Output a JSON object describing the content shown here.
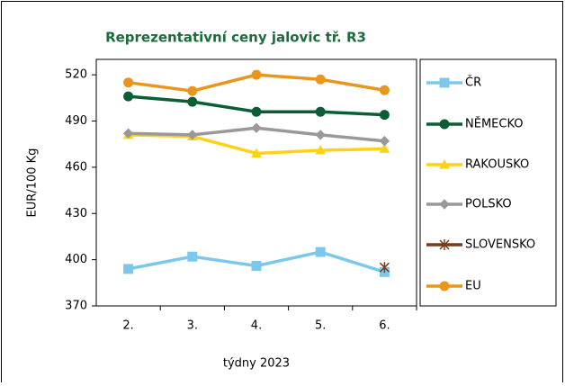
{
  "chart_data": {
    "type": "line",
    "title": "Reprezentativní  ceny jalovic tř. R3",
    "y_label": "EUR/100 Kg",
    "x_label": "týdny 2023",
    "categories": [
      "2.",
      "3.",
      "4.",
      "5.",
      "6."
    ],
    "ylim": [
      370,
      530
    ],
    "yticks": [
      370,
      400,
      430,
      460,
      490,
      520
    ],
    "grid": false,
    "legend": "right",
    "series": [
      {
        "name": "ČR",
        "color": "#7cc8ec",
        "marker": "square",
        "values": [
          394,
          402,
          396,
          405,
          392
        ]
      },
      {
        "name": "NĚMECKO",
        "color": "#0b5d36",
        "marker": "circle",
        "values": [
          506,
          502.5,
          496,
          496,
          494
        ]
      },
      {
        "name": "RAKOUSKO",
        "color": "#ffd21a",
        "marker": "triangle",
        "values": [
          481,
          480,
          469,
          471,
          472
        ]
      },
      {
        "name": "POLSKO",
        "color": "#999999",
        "marker": "diamond",
        "values": [
          482,
          481,
          485.5,
          481,
          477
        ]
      },
      {
        "name": "SLOVENSKO",
        "color": "#7b3b1b",
        "marker": "star",
        "values": [
          null,
          null,
          null,
          null,
          395
        ]
      },
      {
        "name": "EU",
        "color": "#e8961e",
        "marker": "circle",
        "values": [
          515,
          509.5,
          520,
          517,
          510
        ]
      }
    ]
  }
}
